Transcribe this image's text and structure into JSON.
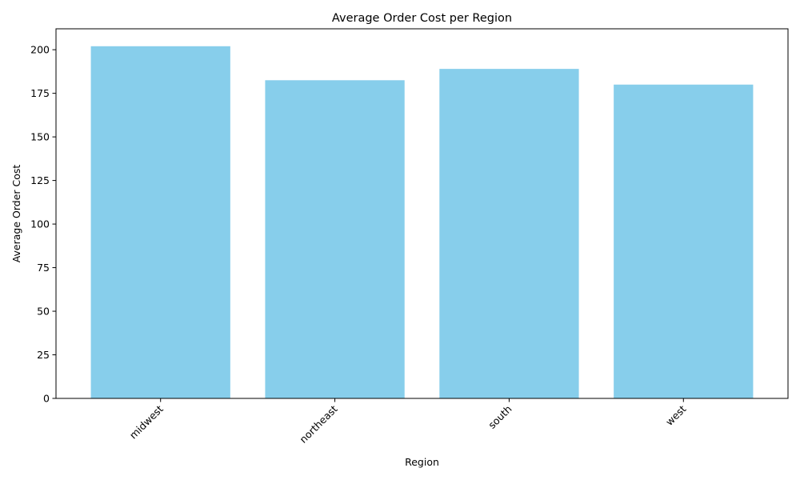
{
  "chart_data": {
    "type": "bar",
    "title": "Average Order Cost per Region",
    "xlabel": "Region",
    "ylabel": "Average Order Cost",
    "categories": [
      "midwest",
      "northeast",
      "south",
      "west"
    ],
    "values": [
      202,
      182.5,
      189,
      180
    ],
    "ylim": [
      0,
      212
    ],
    "yticks": [
      0,
      25,
      50,
      75,
      100,
      125,
      150,
      175,
      200
    ],
    "ytick_labels": [
      "0",
      "25",
      "50",
      "75",
      "100",
      "125",
      "150",
      "175",
      "200"
    ],
    "xtick_rotation_deg": 45,
    "grid": false,
    "legend": "none",
    "bar_color": "#87CEEB"
  }
}
